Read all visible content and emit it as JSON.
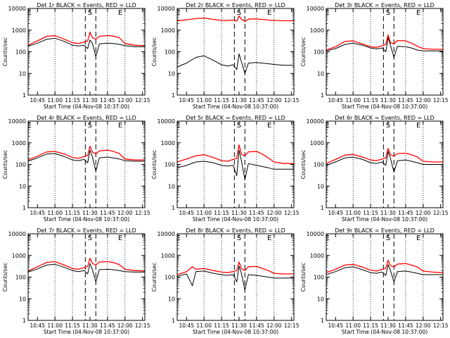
{
  "xlabel": "Start Time (04-Nov-08 10:37:00)",
  "ylabel": "Counts/sec",
  "x_range": [
    "10:37",
    "12:17"
  ],
  "y_range": [
    1,
    10000
  ],
  "y_scale": "log",
  "x_ticks": [
    "10:45",
    "11:00",
    "11:15",
    "11:30",
    "11:45",
    "12:00",
    "12:15"
  ],
  "y_ticks": [
    "1",
    "10",
    "100",
    "1000",
    "10000"
  ],
  "colors": {
    "events": "#000000",
    "lld": "#ff0000",
    "axes": "#000000",
    "background": "#ffffff"
  },
  "chart_data": [
    {
      "type": "line",
      "title": "Det 1r BLACK = Events, RED = LLD",
      "markers": [
        "E",
        "S",
        "E"
      ],
      "series": [
        {
          "name": "Events",
          "color": "#000000",
          "x": [
            "10:37",
            "10:45",
            "10:53",
            "11:00",
            "11:08",
            "11:15",
            "11:20",
            "11:25",
            "11:28",
            "11:30",
            "11:32",
            "11:35",
            "11:38",
            "11:45",
            "11:50",
            "11:55",
            "12:00",
            "12:08",
            "12:17"
          ],
          "values": [
            180,
            250,
            380,
            420,
            300,
            200,
            185,
            200,
            140,
            350,
            250,
            60,
            230,
            250,
            240,
            220,
            190,
            170,
            170
          ]
        },
        {
          "name": "LLD",
          "color": "#ff0000",
          "x": [
            "10:37",
            "10:45",
            "10:53",
            "11:00",
            "11:08",
            "11:15",
            "11:20",
            "11:25",
            "11:28",
            "11:30",
            "11:32",
            "11:35",
            "11:38",
            "11:45",
            "11:50",
            "11:55",
            "12:00",
            "12:08",
            "12:17"
          ],
          "values": [
            200,
            320,
            520,
            550,
            380,
            260,
            240,
            280,
            320,
            800,
            450,
            380,
            520,
            560,
            530,
            450,
            240,
            200,
            190
          ]
        }
      ]
    },
    {
      "type": "line",
      "title": "Det 2r BLACK = Events, RED = LLD",
      "markers": [
        "E",
        "S",
        "E"
      ],
      "series": [
        {
          "name": "Events",
          "color": "#000000",
          "x": [
            "10:37",
            "10:45",
            "10:53",
            "11:00",
            "11:08",
            "11:15",
            "11:20",
            "11:25",
            "11:28",
            "11:30",
            "11:32",
            "11:35",
            "11:38",
            "11:45",
            "11:50",
            "11:55",
            "12:00",
            "12:08",
            "12:17"
          ],
          "values": [
            20,
            30,
            55,
            65,
            40,
            25,
            22,
            25,
            15,
            80,
            35,
            10,
            30,
            32,
            30,
            28,
            26,
            24,
            24
          ]
        },
        {
          "name": "LLD",
          "color": "#ff0000",
          "x": [
            "10:37",
            "10:45",
            "10:53",
            "11:00",
            "11:08",
            "11:15",
            "11:20",
            "11:25",
            "11:28",
            "11:30",
            "11:32",
            "11:35",
            "11:38",
            "11:45",
            "11:50",
            "11:55",
            "12:00",
            "12:08",
            "12:17"
          ],
          "values": [
            2700,
            3000,
            3400,
            3600,
            3100,
            2800,
            2750,
            2900,
            2600,
            4500,
            3300,
            2500,
            3200,
            3300,
            3100,
            2900,
            2800,
            2700,
            2700
          ]
        }
      ]
    },
    {
      "type": "line",
      "title": "Det 3r BLACK = Events, RED = LLD",
      "markers": [
        "E",
        "S",
        "E"
      ],
      "series": [
        {
          "name": "Events",
          "color": "#000000",
          "x": [
            "10:37",
            "10:45",
            "10:53",
            "11:00",
            "11:08",
            "11:15",
            "11:20",
            "11:25",
            "11:28",
            "11:30",
            "11:32",
            "11:35",
            "11:38",
            "11:45",
            "11:50",
            "11:55",
            "12:00",
            "12:08",
            "12:17"
          ],
          "values": [
            110,
            140,
            220,
            250,
            200,
            150,
            135,
            150,
            100,
            450,
            200,
            55,
            180,
            170,
            150,
            120,
            110,
            110,
            110
          ]
        },
        {
          "name": "LLD",
          "color": "#ff0000",
          "x": [
            "10:37",
            "10:45",
            "10:53",
            "11:00",
            "11:08",
            "11:15",
            "11:20",
            "11:25",
            "11:28",
            "11:30",
            "11:32",
            "11:35",
            "11:38",
            "11:45",
            "11:50",
            "11:55",
            "12:00",
            "12:08",
            "12:17"
          ],
          "values": [
            120,
            170,
            300,
            320,
            230,
            170,
            160,
            190,
            220,
            600,
            260,
            230,
            330,
            320,
            250,
            180,
            140,
            130,
            130
          ]
        }
      ]
    },
    {
      "type": "line",
      "title": "Det 4r BLACK = Events, RED = LLD",
      "markers": [
        "E",
        "S",
        "E"
      ],
      "series": [
        {
          "name": "Events",
          "color": "#000000",
          "x": [
            "10:37",
            "10:45",
            "10:53",
            "11:00",
            "11:08",
            "11:15",
            "11:20",
            "11:25",
            "11:28",
            "11:30",
            "11:32",
            "11:35",
            "11:38",
            "11:45",
            "11:50",
            "11:55",
            "12:00",
            "12:08",
            "12:17"
          ],
          "values": [
            140,
            200,
            300,
            320,
            230,
            160,
            150,
            170,
            120,
            450,
            230,
            50,
            200,
            220,
            200,
            180,
            150,
            140,
            140
          ]
        },
        {
          "name": "LLD",
          "color": "#ff0000",
          "x": [
            "10:37",
            "10:45",
            "10:53",
            "11:00",
            "11:08",
            "11:15",
            "11:20",
            "11:25",
            "11:28",
            "11:30",
            "11:32",
            "11:35",
            "11:38",
            "11:45",
            "11:50",
            "11:55",
            "12:00",
            "12:08",
            "12:17"
          ],
          "values": [
            160,
            240,
            380,
            400,
            300,
            210,
            190,
            230,
            260,
            700,
            380,
            300,
            420,
            460,
            400,
            320,
            180,
            160,
            160
          ]
        }
      ]
    },
    {
      "type": "line",
      "title": "Det 5r BLACK = Events, RED = LLD",
      "markers": [
        "E",
        "S",
        "E"
      ],
      "series": [
        {
          "name": "Events",
          "color": "#000000",
          "x": [
            "10:37",
            "10:45",
            "10:53",
            "11:00",
            "11:08",
            "11:15",
            "11:20",
            "11:25",
            "11:28",
            "11:30",
            "11:32",
            "11:35",
            "11:38",
            "11:45",
            "11:50",
            "11:55",
            "12:00",
            "12:08",
            "12:17"
          ],
          "values": [
            70,
            90,
            130,
            140,
            120,
            90,
            85,
            90,
            30,
            450,
            150,
            20,
            110,
            90,
            80,
            70,
            60,
            60,
            60
          ]
        },
        {
          "name": "LLD",
          "color": "#ff0000",
          "x": [
            "10:37",
            "10:45",
            "10:53",
            "11:00",
            "11:08",
            "11:15",
            "11:20",
            "11:25",
            "11:28",
            "11:30",
            "11:32",
            "11:35",
            "11:38",
            "11:45",
            "11:50",
            "11:55",
            "12:00",
            "12:08",
            "12:17"
          ],
          "values": [
            130,
            180,
            250,
            280,
            210,
            150,
            140,
            170,
            190,
            800,
            300,
            250,
            380,
            400,
            300,
            200,
            130,
            110,
            110
          ]
        }
      ]
    },
    {
      "type": "line",
      "title": "Det 6r BLACK = Events, RED = LLD",
      "markers": [
        "E",
        "S",
        "E"
      ],
      "series": [
        {
          "name": "Events",
          "color": "#000000",
          "x": [
            "10:37",
            "10:45",
            "10:53",
            "11:00",
            "11:08",
            "11:15",
            "11:20",
            "11:25",
            "11:28",
            "11:30",
            "11:32",
            "11:35",
            "11:38",
            "11:45",
            "11:50",
            "11:55",
            "12:00",
            "12:08",
            "12:17"
          ],
          "values": [
            90,
            130,
            200,
            220,
            170,
            120,
            110,
            130,
            90,
            400,
            190,
            45,
            150,
            160,
            140,
            120,
            100,
            100,
            100
          ]
        },
        {
          "name": "LLD",
          "color": "#ff0000",
          "x": [
            "10:37",
            "10:45",
            "10:53",
            "11:00",
            "11:08",
            "11:15",
            "11:20",
            "11:25",
            "11:28",
            "11:30",
            "11:32",
            "11:35",
            "11:38",
            "11:45",
            "11:50",
            "11:55",
            "12:00",
            "12:08",
            "12:17"
          ],
          "values": [
            110,
            170,
            270,
            290,
            220,
            160,
            150,
            180,
            200,
            550,
            280,
            240,
            320,
            330,
            280,
            220,
            140,
            130,
            130
          ]
        }
      ]
    },
    {
      "type": "line",
      "title": "Det 7r BLACK = Events, RED = LLD",
      "markers": [
        "E",
        "S",
        "E"
      ],
      "series": [
        {
          "name": "Events",
          "color": "#000000",
          "x": [
            "10:37",
            "10:45",
            "10:53",
            "11:00",
            "11:08",
            "11:15",
            "11:20",
            "11:25",
            "11:28",
            "11:30",
            "11:32",
            "11:35",
            "11:38",
            "11:45",
            "11:50",
            "11:55",
            "12:00",
            "12:08",
            "12:17"
          ],
          "values": [
            170,
            240,
            360,
            390,
            280,
            200,
            180,
            200,
            140,
            420,
            230,
            60,
            220,
            230,
            220,
            200,
            180,
            170,
            170
          ]
        },
        {
          "name": "LLD",
          "color": "#ff0000",
          "x": [
            "10:37",
            "10:45",
            "10:53",
            "11:00",
            "11:08",
            "11:15",
            "11:20",
            "11:25",
            "11:28",
            "11:30",
            "11:32",
            "11:35",
            "11:38",
            "11:45",
            "11:50",
            "11:55",
            "12:00",
            "12:08",
            "12:17"
          ],
          "values": [
            190,
            300,
            480,
            520,
            360,
            250,
            230,
            270,
            310,
            750,
            430,
            360,
            500,
            520,
            470,
            380,
            230,
            200,
            190
          ]
        }
      ]
    },
    {
      "type": "line",
      "title": "Det 8r BLACK = Events, RED = LLD",
      "markers": [
        "E",
        "S",
        "E"
      ],
      "series": [
        {
          "name": "Events",
          "color": "#000000",
          "x": [
            "10:37",
            "10:45",
            "10:50",
            "10:53",
            "11:00",
            "11:08",
            "11:15",
            "11:20",
            "11:25",
            "11:28",
            "11:30",
            "11:32",
            "11:35",
            "11:38",
            "11:45",
            "11:50",
            "11:55",
            "12:00",
            "12:08",
            "12:17"
          ],
          "values": [
            110,
            140,
            40,
            180,
            190,
            150,
            130,
            120,
            130,
            60,
            320,
            150,
            25,
            130,
            120,
            110,
            100,
            90,
            90,
            90
          ]
        },
        {
          "name": "LLD",
          "color": "#ff0000",
          "x": [
            "10:37",
            "10:45",
            "10:50",
            "10:53",
            "11:00",
            "11:08",
            "11:15",
            "11:20",
            "11:25",
            "11:28",
            "11:30",
            "11:32",
            "11:35",
            "11:38",
            "11:45",
            "11:50",
            "11:55",
            "12:00",
            "12:08",
            "12:17"
          ],
          "values": [
            130,
            180,
            300,
            230,
            250,
            200,
            170,
            160,
            180,
            200,
            500,
            250,
            200,
            300,
            310,
            250,
            200,
            150,
            140,
            140
          ]
        }
      ]
    },
    {
      "type": "line",
      "title": "Det 9r BLACK = Events, RED = LLD",
      "markers": [
        "E",
        "S",
        "E"
      ],
      "series": [
        {
          "name": "Events",
          "color": "#000000",
          "x": [
            "10:37",
            "10:45",
            "10:53",
            "11:00",
            "11:08",
            "11:15",
            "11:20",
            "11:25",
            "11:28",
            "11:30",
            "11:32",
            "11:35",
            "11:38",
            "11:45",
            "11:50",
            "11:55",
            "12:00",
            "12:08",
            "12:17"
          ],
          "values": [
            130,
            180,
            270,
            300,
            220,
            160,
            150,
            170,
            120,
            380,
            200,
            60,
            180,
            190,
            170,
            150,
            130,
            130,
            130
          ]
        },
        {
          "name": "LLD",
          "color": "#ff0000",
          "x": [
            "10:37",
            "10:45",
            "10:53",
            "11:00",
            "11:08",
            "11:15",
            "11:20",
            "11:25",
            "11:28",
            "11:30",
            "11:32",
            "11:35",
            "11:38",
            "11:45",
            "11:50",
            "11:55",
            "12:00",
            "12:08",
            "12:17"
          ],
          "values": [
            160,
            230,
            360,
            390,
            290,
            210,
            190,
            230,
            260,
            600,
            340,
            290,
            400,
            420,
            360,
            290,
            190,
            170,
            160
          ]
        }
      ]
    }
  ]
}
